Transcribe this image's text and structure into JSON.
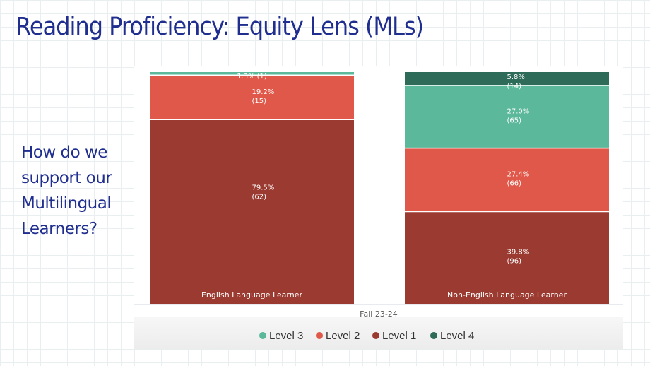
{
  "slide": {
    "title": "Reading Proficiency: Equity Lens (MLs)",
    "question": "How do we support our Multilingual Learners?"
  },
  "chart_data": {
    "type": "bar",
    "stacked": true,
    "normalized": true,
    "x_axis_label": "Fall 23-24",
    "categories": [
      "English Language Learner",
      "Non-English Language Learner"
    ],
    "stack_order": [
      "Level 1",
      "Level 2",
      "Level 3",
      "Level 4"
    ],
    "series": [
      {
        "name": "Level 1",
        "color": "#9b3a30",
        "percents": [
          79.5,
          39.8
        ],
        "counts": [
          62,
          96
        ],
        "labels": [
          "79.5%",
          "39.8%"
        ],
        "count_labels": [
          "(62)",
          "(96)"
        ]
      },
      {
        "name": "Level 2",
        "color": "#e0584a",
        "percents": [
          19.2,
          27.4
        ],
        "counts": [
          15,
          66
        ],
        "labels": [
          "19.2%",
          "27.4%"
        ],
        "count_labels": [
          "(15)",
          "(66)"
        ]
      },
      {
        "name": "Level 3",
        "color": "#5bb89a",
        "percents": [
          1.3,
          27.0
        ],
        "counts": [
          1,
          65
        ],
        "labels": [
          "1.3%",
          "27.0%"
        ],
        "count_labels": [
          "(1)",
          "(65)"
        ]
      },
      {
        "name": "Level 4",
        "color": "#2e6b58",
        "percents": [
          0,
          5.8
        ],
        "counts": [
          0,
          14
        ],
        "labels": [
          "",
          "5.8%"
        ],
        "count_labels": [
          "",
          "(14)"
        ]
      }
    ],
    "legend_order": [
      "Level 3",
      "Level 2",
      "Level 1",
      "Level 4"
    ],
    "legend_position": "bottom",
    "grid": false
  }
}
